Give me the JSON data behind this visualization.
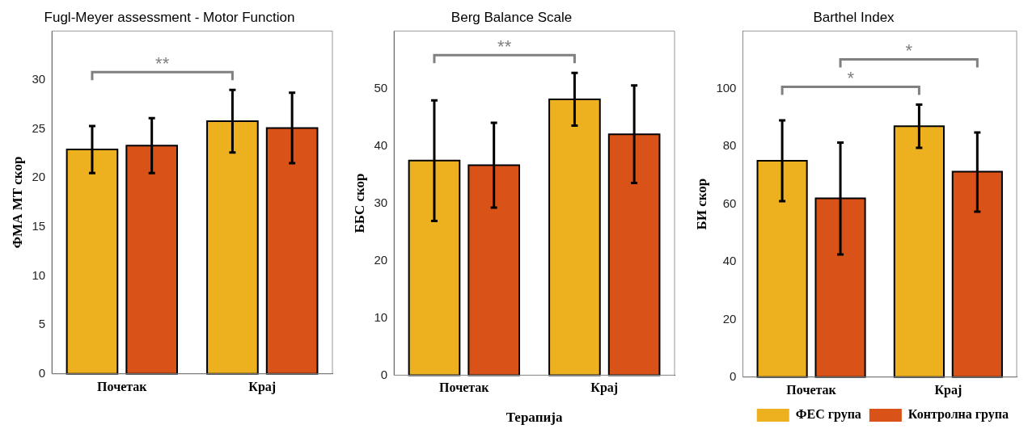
{
  "chart_data": [
    {
      "type": "bar",
      "title": "Fugl-Meyer assessment - Motor Function",
      "ylabel": "ФМА МТ скор",
      "categories": [
        "Почетак",
        "Крај"
      ],
      "series": [
        {
          "color": "#edb120",
          "values": [
            22.9,
            25.8
          ],
          "errors": [
            [
              20.5,
              25.3
            ],
            [
              22.6,
              29.0
            ]
          ]
        },
        {
          "color": "#d95319",
          "values": [
            23.3,
            25.1
          ],
          "errors": [
            [
              20.5,
              26.1
            ],
            [
              21.5,
              28.7
            ]
          ]
        }
      ],
      "ylim": [
        0,
        35
      ],
      "yticks": [
        0,
        5,
        10,
        15,
        20,
        25,
        30
      ],
      "grid": false,
      "legend": false,
      "annotations": [
        "**"
      ]
    },
    {
      "type": "bar",
      "title": "Berg Balance Scale",
      "xlabel": "Терапија",
      "ylabel": "ББС скор",
      "categories": [
        "Почетак",
        "Крај"
      ],
      "series": [
        {
          "color": "#edb120",
          "values": [
            37.4,
            48.1
          ],
          "errors": [
            [
              26.9,
              47.9
            ],
            [
              43.5,
              52.7
            ]
          ]
        },
        {
          "color": "#d95319",
          "values": [
            36.6,
            42.0
          ],
          "errors": [
            [
              29.2,
              44.0
            ],
            [
              33.5,
              50.5
            ]
          ]
        }
      ],
      "ylim": [
        0,
        60
      ],
      "yticks": [
        0,
        10,
        20,
        30,
        40,
        50
      ],
      "grid": false,
      "legend": false,
      "annotations": [
        "**"
      ]
    },
    {
      "type": "bar",
      "title": "Barthel Index",
      "ylabel": "БИ скор",
      "categories": [
        "Почетак",
        "Крај"
      ],
      "series": [
        {
          "name": "ФЕС група",
          "color": "#edb120",
          "values": [
            75,
            87
          ],
          "errors": [
            [
              61,
              89
            ],
            [
              79.5,
              94.5
            ]
          ]
        },
        {
          "name": "Контролна група",
          "color": "#d95319",
          "values": [
            62,
            71.2
          ],
          "errors": [
            [
              42.5,
              81.3
            ],
            [
              57.4,
              84.8
            ]
          ]
        }
      ],
      "ylim": [
        0,
        120
      ],
      "yticks": [
        0,
        20,
        40,
        60,
        80,
        100
      ],
      "grid": false,
      "legend": "bottom right",
      "annotations": [
        "*",
        "*"
      ]
    }
  ]
}
